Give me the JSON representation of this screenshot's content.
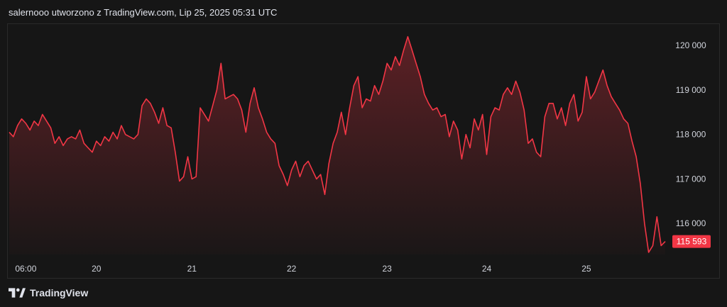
{
  "header": {
    "attribution": "salernooo utworzono z TradingView.com, Lip 25, 2025 05:31 UTC"
  },
  "footer": {
    "brand": "TradingView",
    "logo_icon": "tradingview-logo-icon"
  },
  "colors": {
    "background": "#161616",
    "line": "#f23645",
    "label_bg": "#f23645",
    "text": "#d1d4dc"
  },
  "chart_data": {
    "type": "area",
    "xlabel": "",
    "ylabel": "",
    "x_ticks": [
      "06:00",
      "20",
      "21",
      "22",
      "23",
      "24",
      "25"
    ],
    "y_ticks": [
      "120 000",
      "119 000",
      "118 000",
      "117 000",
      "116 000"
    ],
    "ylim": [
      115300,
      120450
    ],
    "last_value_label": "115 593",
    "last_value": 115593,
    "grid": false,
    "series": [
      {
        "points": [
          [
            0.0,
            118050
          ],
          [
            0.25,
            117950
          ],
          [
            0.5,
            118200
          ],
          [
            0.75,
            118350
          ],
          [
            1.0,
            118250
          ],
          [
            1.25,
            118100
          ],
          [
            1.5,
            118300
          ],
          [
            1.75,
            118200
          ],
          [
            2.0,
            118450
          ],
          [
            2.25,
            118300
          ],
          [
            2.5,
            118150
          ],
          [
            2.75,
            117800
          ],
          [
            3.0,
            117950
          ],
          [
            3.25,
            117750
          ],
          [
            3.5,
            117900
          ],
          [
            3.75,
            117950
          ],
          [
            4.0,
            117900
          ],
          [
            4.25,
            118100
          ],
          [
            4.5,
            117800
          ],
          [
            4.75,
            117700
          ],
          [
            5.0,
            117600
          ],
          [
            5.25,
            117850
          ],
          [
            5.5,
            117750
          ],
          [
            5.75,
            117950
          ],
          [
            6.0,
            117850
          ],
          [
            6.25,
            118050
          ],
          [
            6.5,
            117900
          ],
          [
            6.75,
            118200
          ],
          [
            7.0,
            118000
          ],
          [
            7.25,
            117950
          ],
          [
            7.5,
            117900
          ],
          [
            7.75,
            118000
          ],
          [
            8.0,
            118650
          ],
          [
            8.25,
            118800
          ],
          [
            8.5,
            118700
          ],
          [
            8.75,
            118500
          ],
          [
            9.0,
            118250
          ],
          [
            9.25,
            118600
          ],
          [
            9.5,
            118200
          ],
          [
            9.75,
            118150
          ],
          [
            10.0,
            117600
          ],
          [
            10.25,
            116950
          ],
          [
            10.5,
            117050
          ],
          [
            10.75,
            117500
          ],
          [
            11.0,
            117000
          ],
          [
            11.25,
            117050
          ],
          [
            11.5,
            118600
          ],
          [
            11.75,
            118450
          ],
          [
            12.0,
            118300
          ],
          [
            12.25,
            118650
          ],
          [
            12.5,
            119000
          ],
          [
            12.75,
            119600
          ],
          [
            13.0,
            118800
          ],
          [
            13.25,
            118850
          ],
          [
            13.5,
            118900
          ],
          [
            13.75,
            118800
          ],
          [
            14.0,
            118550
          ],
          [
            14.25,
            118050
          ],
          [
            14.5,
            118700
          ],
          [
            14.75,
            119050
          ],
          [
            15.0,
            118600
          ],
          [
            15.25,
            118350
          ],
          [
            15.5,
            118050
          ],
          [
            15.75,
            117900
          ],
          [
            16.0,
            117800
          ],
          [
            16.25,
            117300
          ],
          [
            16.5,
            117100
          ],
          [
            16.75,
            116850
          ],
          [
            17.0,
            117200
          ],
          [
            17.25,
            117400
          ],
          [
            17.5,
            117050
          ],
          [
            17.75,
            117300
          ],
          [
            18.0,
            117400
          ],
          [
            18.25,
            117200
          ],
          [
            18.5,
            117000
          ],
          [
            18.75,
            117100
          ],
          [
            19.0,
            116650
          ],
          [
            19.25,
            117350
          ],
          [
            19.5,
            117800
          ],
          [
            19.75,
            118050
          ],
          [
            20.0,
            118500
          ],
          [
            20.25,
            118000
          ],
          [
            20.5,
            118600
          ],
          [
            20.75,
            119100
          ],
          [
            21.0,
            119300
          ],
          [
            21.25,
            118600
          ],
          [
            21.5,
            118800
          ],
          [
            21.75,
            118750
          ],
          [
            22.0,
            119100
          ],
          [
            22.25,
            118900
          ],
          [
            22.5,
            119200
          ],
          [
            22.75,
            119600
          ],
          [
            23.0,
            119450
          ],
          [
            23.25,
            119750
          ],
          [
            23.5,
            119550
          ],
          [
            23.75,
            119900
          ],
          [
            24.0,
            120200
          ],
          [
            24.25,
            119900
          ],
          [
            24.5,
            119600
          ],
          [
            24.75,
            119300
          ],
          [
            25.0,
            118900
          ],
          [
            25.25,
            118700
          ],
          [
            25.5,
            118550
          ],
          [
            25.75,
            118600
          ],
          [
            26.0,
            118400
          ],
          [
            26.25,
            118450
          ],
          [
            26.5,
            117950
          ],
          [
            26.75,
            118300
          ],
          [
            27.0,
            118100
          ],
          [
            27.25,
            117450
          ],
          [
            27.5,
            118000
          ],
          [
            27.75,
            117700
          ],
          [
            28.0,
            118350
          ],
          [
            28.25,
            118100
          ],
          [
            28.5,
            118450
          ],
          [
            28.75,
            117550
          ],
          [
            29.0,
            118400
          ],
          [
            29.25,
            118600
          ],
          [
            29.5,
            118550
          ],
          [
            29.75,
            118900
          ],
          [
            30.0,
            119050
          ],
          [
            30.25,
            118900
          ],
          [
            30.5,
            119200
          ],
          [
            30.75,
            118950
          ],
          [
            31.0,
            118550
          ],
          [
            31.25,
            117800
          ],
          [
            31.5,
            117900
          ],
          [
            31.75,
            117600
          ],
          [
            32.0,
            117500
          ],
          [
            32.25,
            118400
          ],
          [
            32.5,
            118700
          ],
          [
            32.75,
            118700
          ],
          [
            33.0,
            118350
          ],
          [
            33.25,
            118600
          ],
          [
            33.5,
            118200
          ],
          [
            33.75,
            118700
          ],
          [
            34.0,
            118900
          ],
          [
            34.25,
            118300
          ],
          [
            34.5,
            118500
          ],
          [
            34.75,
            119300
          ],
          [
            35.0,
            118800
          ],
          [
            35.25,
            118950
          ],
          [
            35.5,
            119200
          ],
          [
            35.75,
            119450
          ],
          [
            36.0,
            119100
          ],
          [
            36.25,
            118850
          ],
          [
            36.5,
            118700
          ],
          [
            36.75,
            118550
          ],
          [
            37.0,
            118350
          ],
          [
            37.25,
            118250
          ],
          [
            37.5,
            117850
          ],
          [
            37.75,
            117500
          ],
          [
            38.0,
            116900
          ],
          [
            38.25,
            116000
          ],
          [
            38.5,
            115350
          ],
          [
            38.75,
            115500
          ],
          [
            39.0,
            116150
          ],
          [
            39.25,
            115500
          ],
          [
            39.5,
            115593
          ]
        ]
      }
    ]
  }
}
